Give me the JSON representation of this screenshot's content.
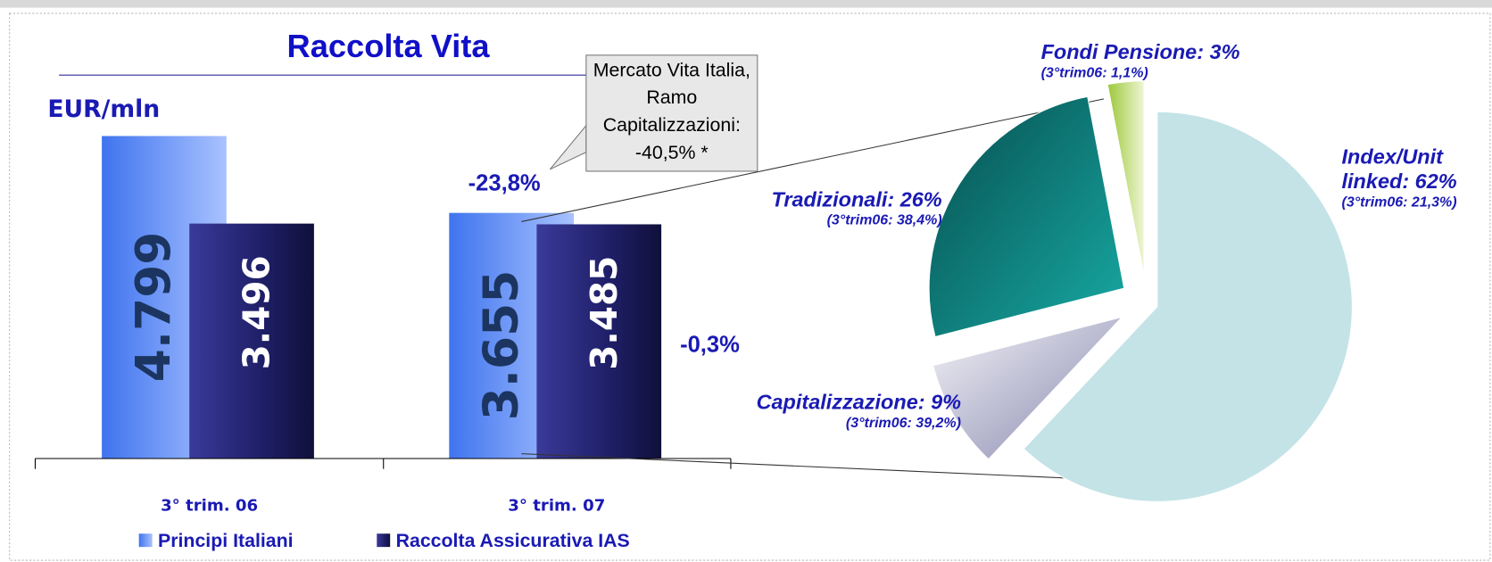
{
  "chart_data": [
    {
      "type": "bar",
      "title": "Raccolta Vita",
      "ylabel": "EUR/mln",
      "categories": [
        "3° trim. 06",
        "3° trim. 07"
      ],
      "series": [
        {
          "name": "Principi Italiani",
          "color": "#6f9af5",
          "values": [
            4799,
            3655
          ],
          "value_labels": [
            "4.799",
            "3.655"
          ]
        },
        {
          "name": "Raccolta Assicurativa IAS",
          "color": "#23236e",
          "values": [
            3496,
            3485
          ],
          "value_labels": [
            "3.496",
            "3.485"
          ]
        }
      ],
      "annotations": [
        "-23,8%",
        "-0,3%",
        "Mercato Vita Italia, Ramo Capitalizzazioni: -40,5% *"
      ]
    },
    {
      "type": "pie",
      "values": [
        62,
        9,
        26,
        3
      ],
      "value_labels": [
        "Index/Unit linked: 62%",
        "Capitalizzazione: 9%",
        "Tradizionali: 26%",
        "Fondi Pensione: 3%"
      ],
      "notes": [
        "(3°trim06: 21,3%)",
        "(3°trim06: 39,2%)",
        "(3°trim06: 38,4%)",
        "(3°trim06: 1,1%)"
      ],
      "colors": [
        "#c4e3e7",
        "#b4b4cc",
        "#0f7f7c",
        "#b6d65c"
      ]
    }
  ]
}
